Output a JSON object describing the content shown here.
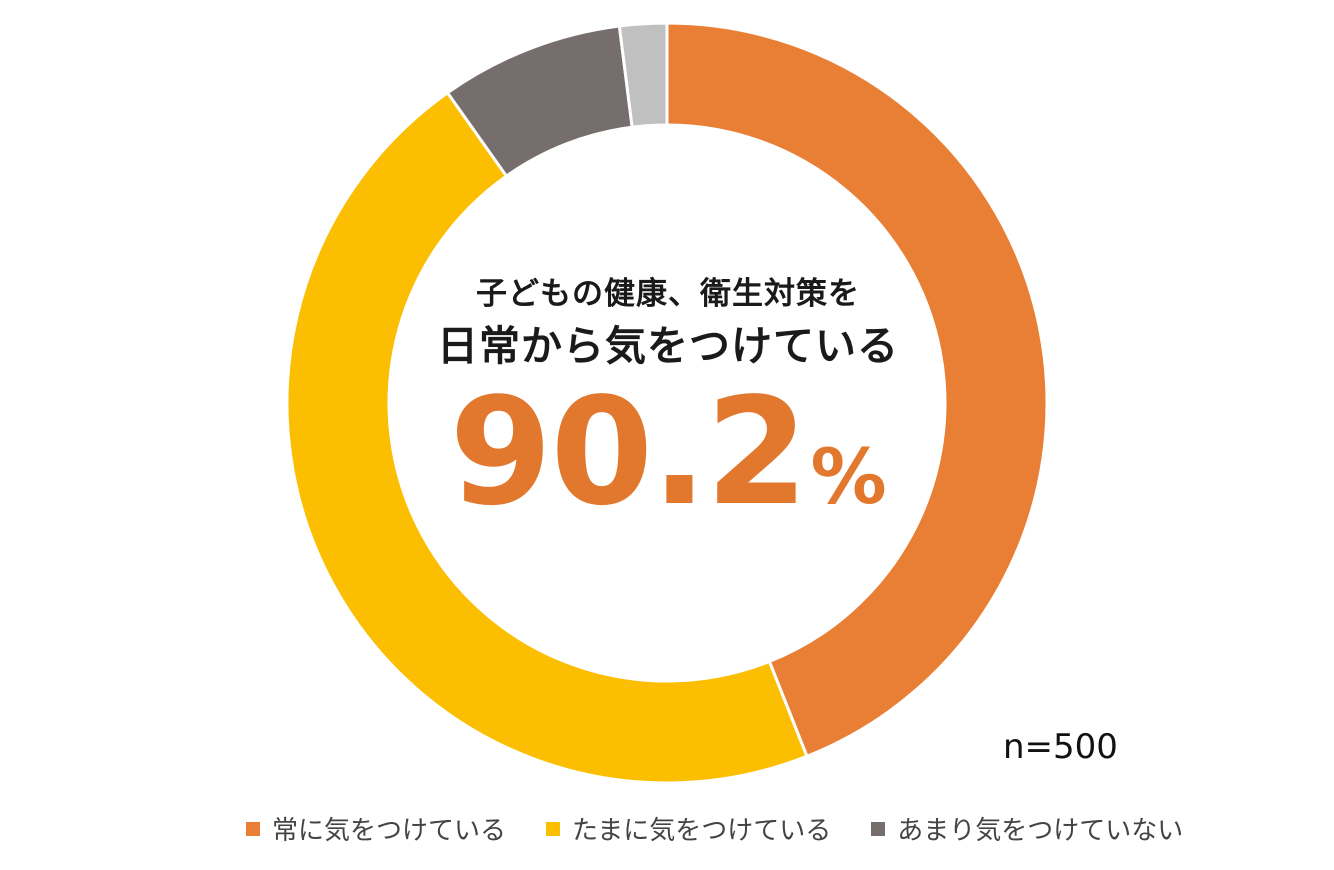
{
  "chart_data": {
    "type": "donut",
    "categories": [
      "常に気をつけている",
      "たまに気をつけている",
      "あまり気をつけていない",
      ""
    ],
    "values": [
      44.0,
      46.2,
      7.8,
      2.0
    ],
    "colors": [
      "#e97f35",
      "#fbbe00",
      "#756e6d",
      "#c0c0c0"
    ],
    "legend": {
      "placement": "bottom",
      "entries": [
        {
          "label": "常に気をつけている",
          "color": "#e97f35"
        },
        {
          "label": "たまに気をつけている",
          "color": "#fbbe00"
        },
        {
          "label": "あまり気をつけていない",
          "color": "#756e6d"
        }
      ]
    },
    "center": {
      "line1": "子どもの健康、衛生対策を",
      "line2": "日常から気をつけている",
      "value": "90.2",
      "unit": "%"
    },
    "sample_size": "n=500"
  }
}
